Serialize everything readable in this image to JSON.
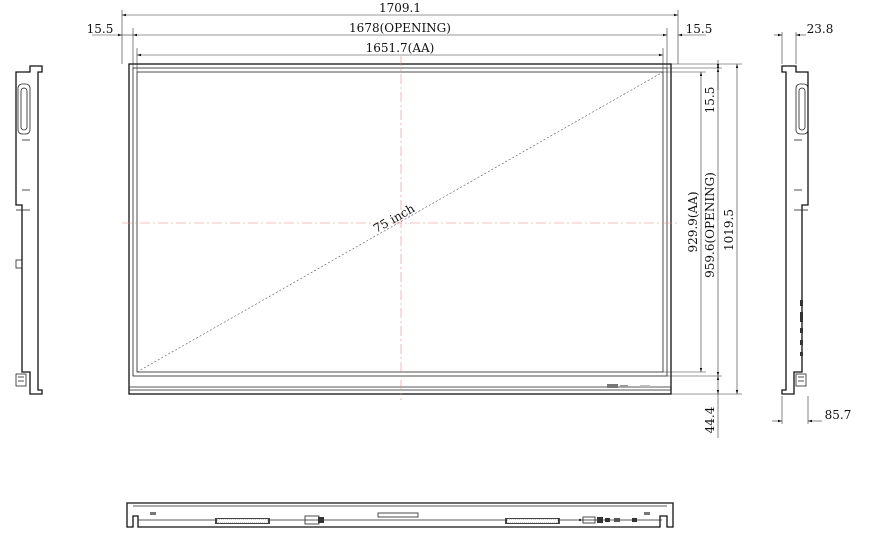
{
  "dimensions": {
    "overall_width": "1709.1",
    "left_border": "15.5",
    "right_border": "15.5",
    "opening_width": "1678(OPENING)",
    "active_width": "1651.7(AA)",
    "top_border": "15.5",
    "active_height": "929.9(AA)",
    "opening_height": "959.6(OPENING)",
    "overall_height": "1019.5",
    "bottom_bezel": "44.4",
    "depth_top": "23.8",
    "depth_bottom": "85.7"
  },
  "diagonal_label": "75 inch",
  "colors": {
    "line": "#111111",
    "centerline": "#e88888",
    "background": "#ffffff"
  }
}
